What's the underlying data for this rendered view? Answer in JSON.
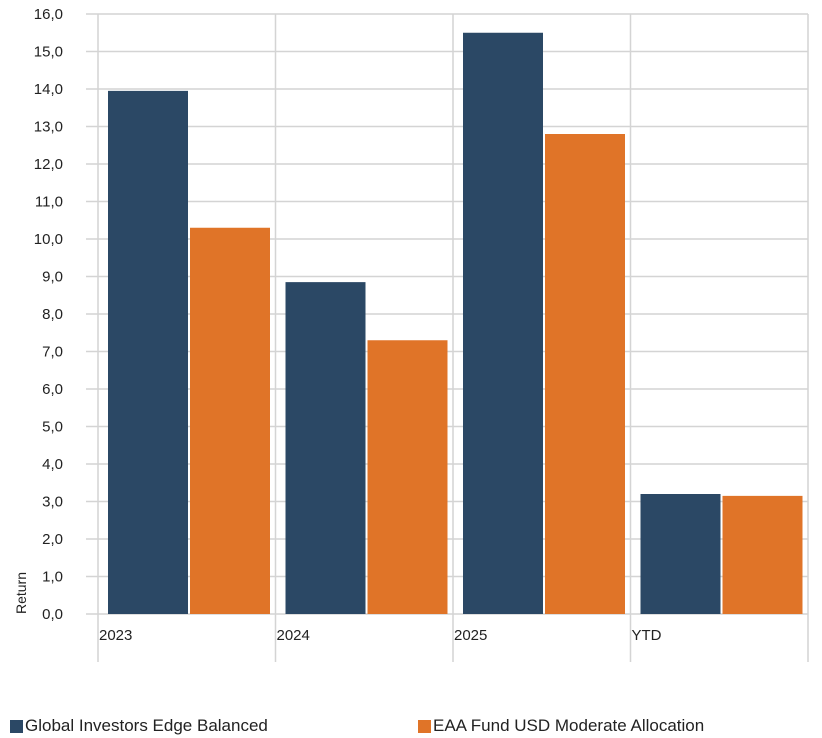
{
  "chart_data": {
    "type": "bar",
    "categories": [
      "2023",
      "2024",
      "2025",
      "YTD"
    ],
    "series": [
      {
        "name": "Global Investors Edge Balanced",
        "color": "#2b4865",
        "values": [
          13.95,
          8.85,
          15.5,
          3.2
        ]
      },
      {
        "name": "EAA Fund USD Moderate Allocation",
        "color": "#e07428",
        "values": [
          10.3,
          7.3,
          12.8,
          3.15
        ]
      }
    ],
    "title": "",
    "xlabel": "",
    "ylabel": "Return",
    "ylim": [
      0,
      16
    ],
    "yticks": [
      "0,0",
      "1,0",
      "2,0",
      "3,0",
      "4,0",
      "5,0",
      "6,0",
      "7,0",
      "8,0",
      "9,0",
      "10,0",
      "11,0",
      "12,0",
      "13,0",
      "14,0",
      "15,0",
      "16,0"
    ],
    "grid": true,
    "legend_position": "bottom"
  }
}
